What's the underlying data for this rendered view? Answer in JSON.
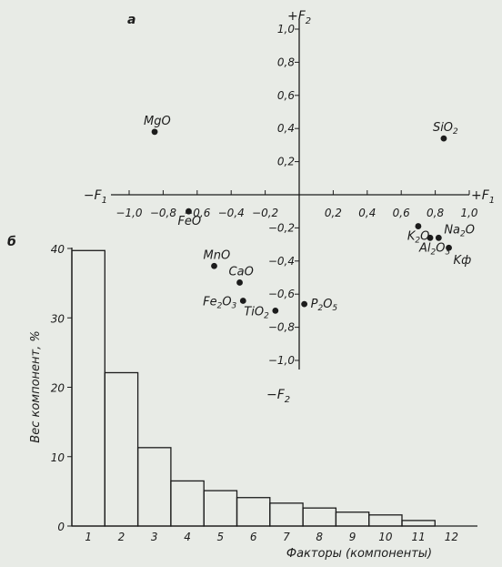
{
  "chart_data": [
    {
      "type": "scatter",
      "panel_label": "а",
      "axis_pos": {
        "x": "+F",
        "x_sub": "1"
      },
      "axis_neg": {
        "x": "−F",
        "x_sub": "1"
      },
      "axis_top": {
        "y": "+F",
        "y_sub": "2"
      },
      "axis_bottom": {
        "y": "−F",
        "y_sub": "2"
      },
      "xlim": [
        -1.0,
        1.0
      ],
      "ylim": [
        -1.0,
        1.0
      ],
      "x_ticks": [
        {
          "v": -1.0,
          "t": "−1,0"
        },
        {
          "v": -0.8,
          "t": "−0,8"
        },
        {
          "v": -0.6,
          "t": "−0,6"
        },
        {
          "v": -0.4,
          "t": "−0,4"
        },
        {
          "v": -0.2,
          "t": "−0,2"
        },
        {
          "v": 0.2,
          "t": "0,2"
        },
        {
          "v": 0.4,
          "t": "0,4"
        },
        {
          "v": 0.6,
          "t": "0,6"
        },
        {
          "v": 0.8,
          "t": "0,8"
        },
        {
          "v": 1.0,
          "t": "1,0"
        }
      ],
      "y_ticks": [
        {
          "v": 1.0,
          "t": "1,0"
        },
        {
          "v": 0.8,
          "t": "0,8"
        },
        {
          "v": 0.6,
          "t": "0,6"
        },
        {
          "v": 0.4,
          "t": "0,4"
        },
        {
          "v": 0.2,
          "t": "0,2"
        },
        {
          "v": -0.2,
          "t": "−0,2"
        },
        {
          "v": -0.4,
          "t": "−0,4"
        },
        {
          "v": -0.6,
          "t": "−0,6"
        },
        {
          "v": -0.8,
          "t": "−0,8"
        },
        {
          "v": -1.0,
          "t": "−1,0"
        }
      ],
      "points": [
        {
          "label": "MgO",
          "x": -0.85,
          "y": 0.38,
          "label_side": "above-left"
        },
        {
          "label": "SiO2",
          "x": 0.85,
          "y": 0.34,
          "label_side": "above-left"
        },
        {
          "label": "FeO",
          "x": -0.65,
          "y": -0.1,
          "label_side": "below-left"
        },
        {
          "label": "K2O",
          "x": 0.7,
          "y": -0.19,
          "label_side": "below-left"
        },
        {
          "label": "Na2O",
          "x": 0.82,
          "y": -0.26,
          "label_side": "above-right"
        },
        {
          "label": "Al2O3",
          "x": 0.77,
          "y": -0.26,
          "label_side": "below-left"
        },
        {
          "label": "Kф",
          "x": 0.88,
          "y": -0.32,
          "label_side": "below-right"
        },
        {
          "label": "MnO",
          "x": -0.5,
          "y": -0.43,
          "label_side": "above-left"
        },
        {
          "label": "CaO",
          "x": -0.35,
          "y": -0.53,
          "label_side": "above-left"
        },
        {
          "label": "Fe2O3",
          "x": -0.33,
          "y": -0.64,
          "label_side": "left"
        },
        {
          "label": "TiO2",
          "x": -0.14,
          "y": -0.7,
          "label_side": "left"
        },
        {
          "label": "P2O5",
          "x": 0.03,
          "y": -0.66,
          "label_side": "right"
        }
      ]
    },
    {
      "type": "bar",
      "panel_label": "б",
      "categories": [
        "1",
        "2",
        "3",
        "4",
        "5",
        "6",
        "7",
        "8",
        "9",
        "10",
        "11",
        "12"
      ],
      "values": [
        39.7,
        22.1,
        11.3,
        6.5,
        5.1,
        4.1,
        3.3,
        2.6,
        2.0,
        1.6,
        0.8,
        0.0
      ],
      "y_ticks": [
        0,
        10,
        20,
        30,
        40
      ],
      "ylim": [
        0,
        40
      ],
      "xlabel": "Факторы (компоненты)",
      "ylabel": "Вес компонент, %"
    }
  ]
}
